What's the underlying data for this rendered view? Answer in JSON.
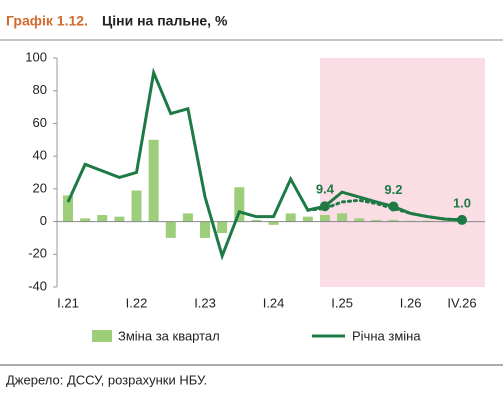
{
  "chart_data": {
    "type": "bar-line",
    "title_number": "Графік 1.12.",
    "title": "Ціни на пальне, %",
    "source": "Джерело: ДССУ, розрахунки НБУ.",
    "categories": [
      "I.21",
      null,
      null,
      null,
      "I.22",
      null,
      null,
      null,
      "I.23",
      null,
      null,
      null,
      "I.24",
      null,
      null,
      null,
      "I.25",
      null,
      null,
      null,
      "I.26",
      null,
      null,
      "IV.26"
    ],
    "series": [
      {
        "name": "Зміна за квартал",
        "kind": "bar",
        "color": "#9dcf7a",
        "values": [
          16,
          2,
          4,
          3,
          19,
          50,
          -10,
          5,
          -10,
          -7,
          21,
          1,
          -2,
          5,
          3,
          4,
          5,
          2,
          1,
          1,
          0.5,
          0.5,
          0.3,
          0.3
        ]
      },
      {
        "name": "Річна зміна",
        "kind": "line",
        "color": "#1e7a45",
        "values": [
          12,
          35,
          31,
          27,
          30,
          91,
          66,
          69,
          15,
          -21,
          6,
          3,
          3,
          26,
          7,
          9.4,
          18,
          15,
          12,
          9.2,
          5,
          3,
          1.5,
          1.0
        ],
        "value_labels": [
          null,
          null,
          null,
          null,
          null,
          null,
          null,
          null,
          null,
          null,
          null,
          null,
          null,
          null,
          null,
          "9.4",
          null,
          null,
          null,
          "9.2",
          null,
          null,
          null,
          "1.0"
        ]
      },
      {
        "kind": "dotted",
        "color": "#1e7a45",
        "values": [
          null,
          null,
          null,
          null,
          null,
          null,
          null,
          null,
          null,
          null,
          null,
          null,
          null,
          null,
          7,
          8,
          12,
          13,
          11,
          8,
          5,
          3,
          1.5,
          1.0
        ]
      }
    ],
    "ylim": [
      -40,
      100
    ],
    "yticks": [
      -40,
      -20,
      0,
      20,
      40,
      60,
      80,
      100
    ]
  }
}
